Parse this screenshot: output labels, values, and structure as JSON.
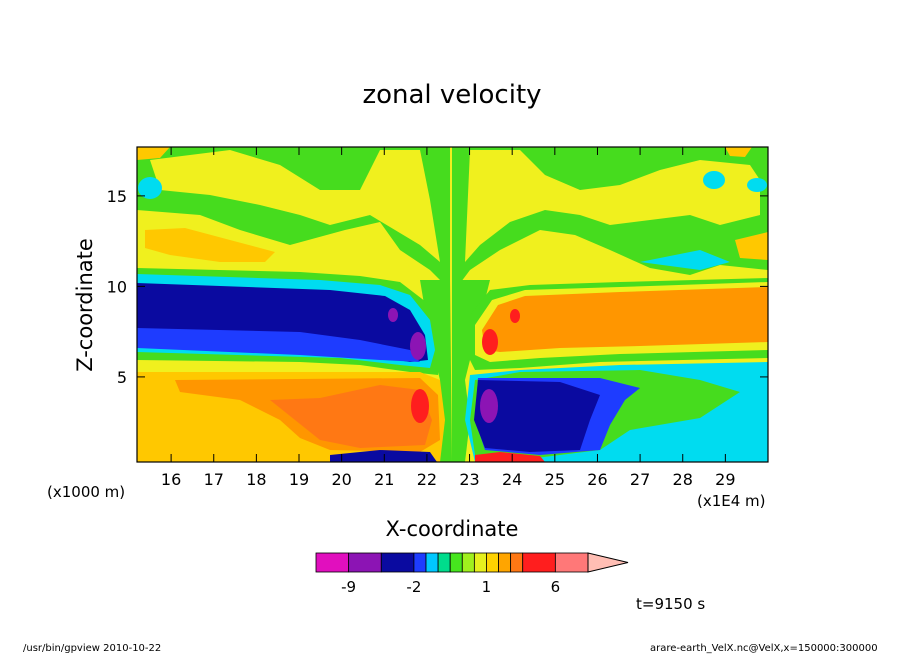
{
  "chart_data": {
    "type": "heatmap",
    "title": "zonal velocity",
    "xlabel": "X-coordinate",
    "ylabel": "Z-coordinate",
    "x_unit_label": "(x1E4 m)",
    "y_unit_label": "(x1000 m)",
    "xlim": [
      15.2,
      30.0
    ],
    "ylim": [
      0.3,
      17.7
    ],
    "x_ticks": [
      "16",
      "17",
      "18",
      "19",
      "20",
      "21",
      "22",
      "23",
      "24",
      "25",
      "26",
      "27",
      "28",
      "29"
    ],
    "y_ticks": [
      "5",
      "10",
      "15"
    ],
    "colorbar": {
      "levels": [
        -12,
        -9,
        -5,
        -2,
        -1.5,
        -1,
        -0.5,
        0,
        0.5,
        1,
        1.5,
        2,
        3,
        6,
        9,
        12
      ],
      "tick_labels": [
        "-9",
        "-2",
        "1",
        "6"
      ],
      "colors": [
        "#e10fbe",
        "#8c14b4",
        "#0a0aa0",
        "#1e3cff",
        "#00c8ff",
        "#00dc8c",
        "#46e61e",
        "#a0f01e",
        "#e6f01e",
        "#ffd200",
        "#ffa500",
        "#ff7814",
        "#ff1e1e",
        "#ff7878",
        "#ffbeb4"
      ]
    },
    "grid": false
  },
  "annotation_time": "t=9150 s",
  "footer_left": "/usr/bin/gpview   2010-10-22",
  "footer_right": "arare-earth_VelX.nc@VelX,x=150000:300000",
  "colors": {
    "neg_strong": "#0a0aa0",
    "neg_peak": "#8c14b4",
    "neg_mid": "#1e3cff",
    "cyan": "#00dcf0",
    "green": "#46dc1e",
    "yellow": "#f0f01e",
    "light_orange": "#ffc800",
    "orange": "#ff9600",
    "orange_strong": "#ff7814",
    "red": "#ff1e1e"
  }
}
